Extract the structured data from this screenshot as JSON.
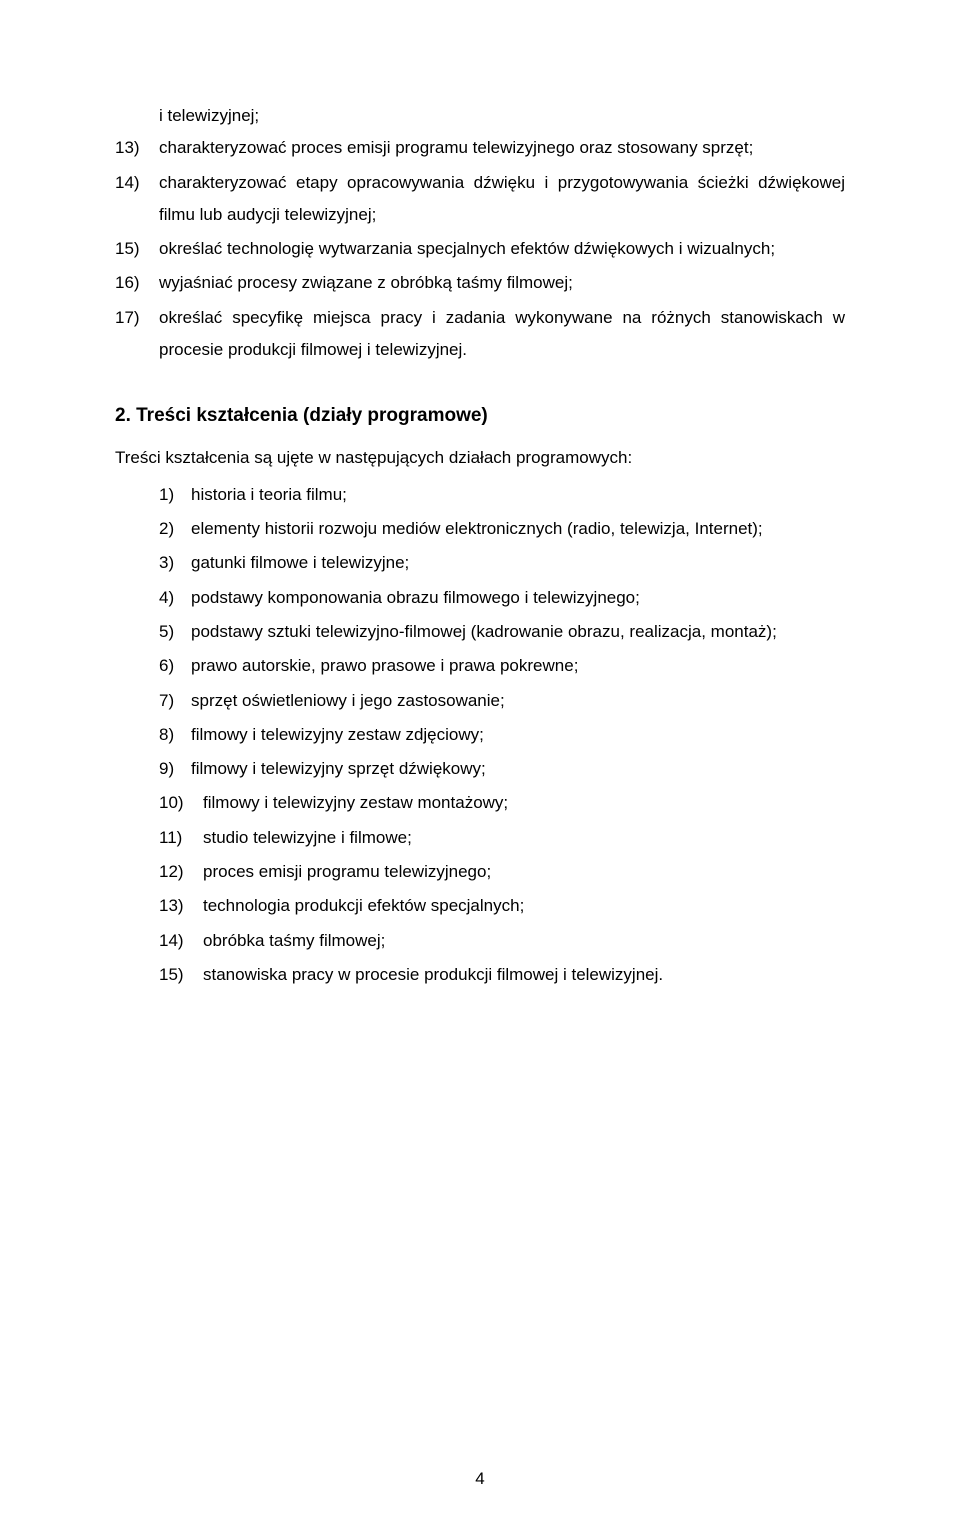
{
  "top_list": {
    "cont_line": "i telewizyjnej;",
    "items": [
      {
        "num": "13)",
        "text": "charakteryzować proces emisji programu telewizyjnego oraz stosowany sprzęt;"
      },
      {
        "num": "14)",
        "text": "charakteryzować etapy opracowywania dźwięku i przygotowywania ścieżki dźwiękowej filmu lub audycji telewizyjnej;"
      },
      {
        "num": "15)",
        "text": "określać technologię wytwarzania specjalnych efektów dźwiękowych i wizualnych;"
      },
      {
        "num": "16)",
        "text": "wyjaśniać procesy związane z obróbką taśmy filmowej;"
      },
      {
        "num": "17)",
        "text": "określać specyfikę miejsca pracy i zadania wykonywane na różnych stanowiskach w procesie produkcji filmowej i telewizyjnej."
      }
    ]
  },
  "section2": {
    "title": "2. Treści kształcenia (działy programowe)",
    "intro": "Treści kształcenia są ujęte w następujących działach programowych:",
    "items": [
      {
        "num": "1)",
        "text": "historia i teoria filmu;"
      },
      {
        "num": "2)",
        "text": "elementy historii rozwoju mediów elektronicznych (radio, telewizja, Internet);"
      },
      {
        "num": "3)",
        "text": "gatunki filmowe i telewizyjne;"
      },
      {
        "num": "4)",
        "text": "podstawy komponowania obrazu filmowego i telewizyjnego;"
      },
      {
        "num": "5)",
        "text": "podstawy sztuki telewizyjno-filmowej (kadrowanie obrazu, realizacja, montaż);"
      },
      {
        "num": "6)",
        "text": "prawo autorskie, prawo prasowe i prawa pokrewne;"
      },
      {
        "num": "7)",
        "text": "sprzęt oświetleniowy i jego zastosowanie;"
      },
      {
        "num": "8)",
        "text": "filmowy i telewizyjny zestaw zdjęciowy;"
      },
      {
        "num": "9)",
        "text": "filmowy i telewizyjny sprzęt dźwiękowy;"
      },
      {
        "num": "10)",
        "text": "filmowy i telewizyjny zestaw montażowy;"
      },
      {
        "num": "11)",
        "text": "studio telewizyjne i filmowe;"
      },
      {
        "num": "12)",
        "text": "proces emisji programu telewizyjnego;"
      },
      {
        "num": "13)",
        "text": "technologia produkcji efektów specjalnych;"
      },
      {
        "num": "14)",
        "text": "obróbka taśmy filmowej;"
      },
      {
        "num": "15)",
        "text": "stanowiska pracy w procesie produkcji filmowej i telewizyjnej."
      }
    ]
  },
  "page_number": "4"
}
